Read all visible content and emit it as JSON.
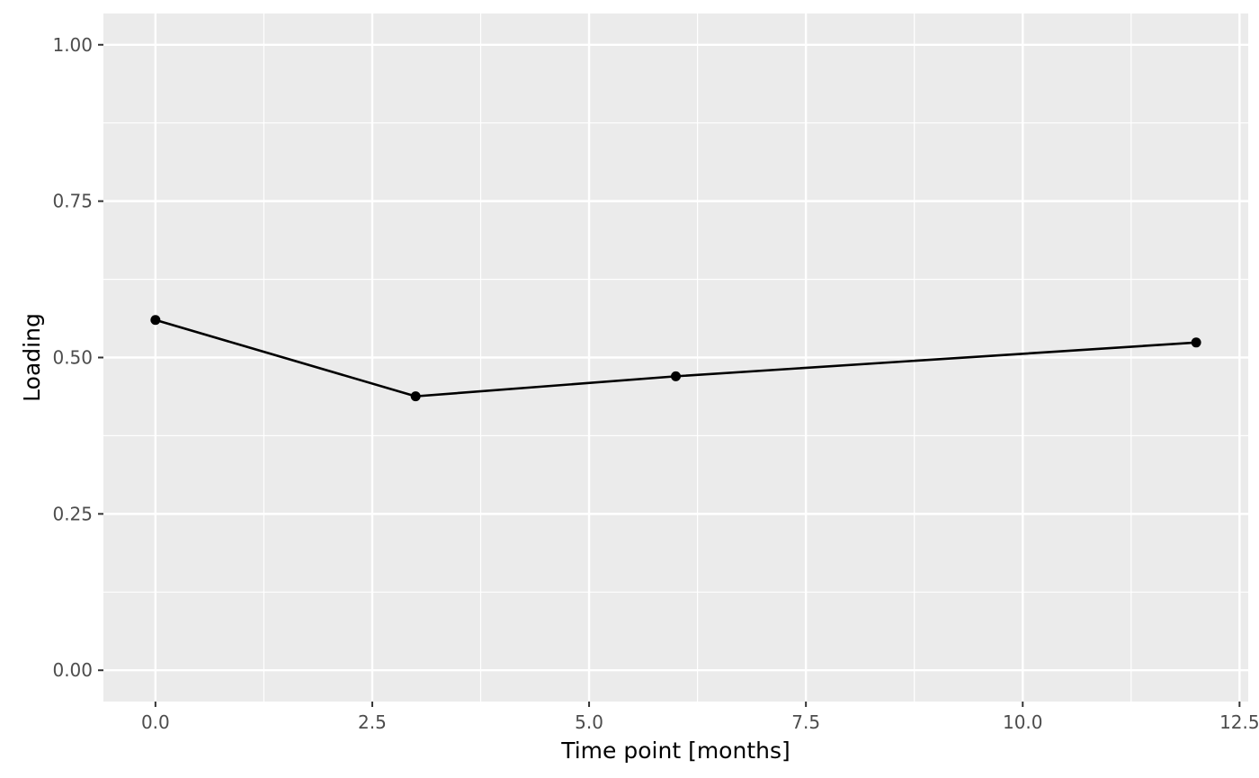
{
  "chart_data": {
    "type": "line",
    "xlabel": "Time point [months]",
    "ylabel": "Loading",
    "xlim": [
      -0.6,
      12.6
    ],
    "ylim": [
      -0.05,
      1.05
    ],
    "x_ticks": [
      0.0,
      2.5,
      5.0,
      7.5,
      10.0,
      12.5
    ],
    "x_tick_labels": [
      "0.0",
      "2.5",
      "5.0",
      "7.5",
      "10.0",
      "12.5"
    ],
    "y_ticks": [
      0.0,
      0.25,
      0.5,
      0.75,
      1.0
    ],
    "y_tick_labels": [
      "0.00",
      "0.25",
      "0.50",
      "0.75",
      "1.00"
    ],
    "grid": true,
    "series": [
      {
        "x": [
          0,
          3,
          6,
          12
        ],
        "y": [
          0.56,
          0.438,
          0.47,
          0.524
        ]
      }
    ],
    "colors": {
      "panel": "#ebebeb",
      "grid": "#ffffff",
      "line": "#000000",
      "tick_text": "#4d4d4d"
    }
  }
}
